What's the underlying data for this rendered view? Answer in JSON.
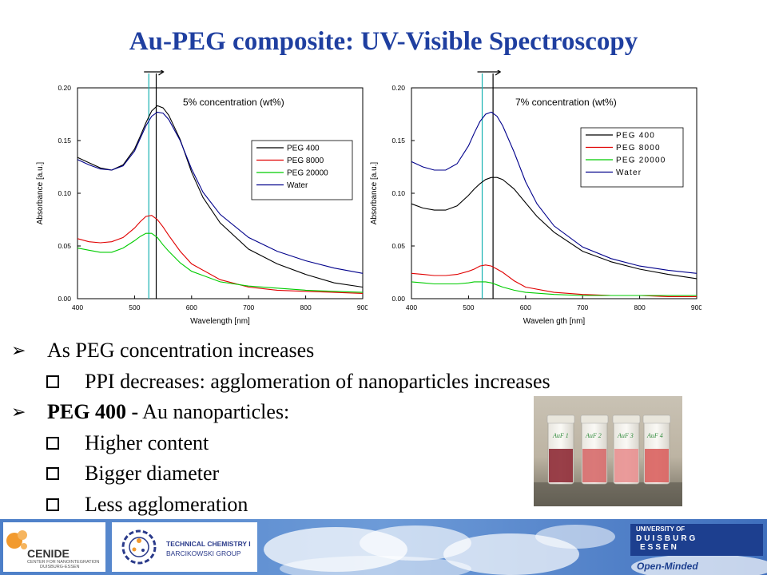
{
  "title": "Au-PEG composite: UV-Visible Spectroscopy",
  "chart_data": [
    {
      "type": "line",
      "title": "5% concentration (wt%)",
      "xlabel": "Wavelength [nm]",
      "ylabel": "Absorbance [a.u.]",
      "xlim": [
        400,
        900
      ],
      "ylim": [
        0,
        0.2
      ],
      "xticks": [
        "400",
        "500",
        "600",
        "700",
        "800",
        "900"
      ],
      "yticks": [
        "0.00",
        "0.05",
        "0.10",
        "0.15",
        "0.20"
      ],
      "legend": "top-right",
      "series": [
        {
          "name": "PEG 400",
          "color": "#000000",
          "x": [
            400,
            420,
            440,
            460,
            480,
            500,
            510,
            520,
            530,
            540,
            550,
            560,
            580,
            600,
            620,
            650,
            700,
            750,
            800,
            850,
            900
          ],
          "y": [
            0.134,
            0.129,
            0.124,
            0.122,
            0.127,
            0.142,
            0.154,
            0.167,
            0.178,
            0.183,
            0.181,
            0.174,
            0.151,
            0.12,
            0.096,
            0.072,
            0.047,
            0.033,
            0.023,
            0.015,
            0.011
          ]
        },
        {
          "name": "PEG 8000",
          "color": "#e00000",
          "x": [
            400,
            420,
            440,
            460,
            480,
            500,
            510,
            520,
            530,
            540,
            550,
            560,
            580,
            600,
            650,
            700,
            750,
            800,
            850,
            900
          ],
          "y": [
            0.057,
            0.054,
            0.053,
            0.054,
            0.058,
            0.067,
            0.073,
            0.078,
            0.079,
            0.075,
            0.068,
            0.06,
            0.045,
            0.033,
            0.018,
            0.011,
            0.008,
            0.007,
            0.006,
            0.005
          ]
        },
        {
          "name": "PEG 20000",
          "color": "#00cc00",
          "x": [
            400,
            420,
            440,
            460,
            480,
            500,
            510,
            520,
            530,
            540,
            550,
            560,
            580,
            600,
            650,
            700,
            750,
            800,
            850,
            900
          ],
          "y": [
            0.048,
            0.046,
            0.044,
            0.044,
            0.048,
            0.055,
            0.059,
            0.062,
            0.062,
            0.058,
            0.051,
            0.045,
            0.034,
            0.026,
            0.016,
            0.012,
            0.01,
            0.008,
            0.007,
            0.006
          ]
        },
        {
          "name": "Water",
          "color": "#00008b",
          "x": [
            400,
            420,
            440,
            460,
            480,
            500,
            510,
            520,
            530,
            540,
            550,
            560,
            580,
            600,
            620,
            650,
            700,
            750,
            800,
            850,
            900
          ],
          "y": [
            0.132,
            0.127,
            0.123,
            0.122,
            0.126,
            0.14,
            0.152,
            0.164,
            0.173,
            0.177,
            0.176,
            0.17,
            0.15,
            0.123,
            0.101,
            0.08,
            0.058,
            0.045,
            0.036,
            0.029,
            0.024
          ]
        }
      ]
    },
    {
      "type": "line",
      "title": "7% concentration (wt%)",
      "xlabel": "Wavelen gth [nm]",
      "ylabel": "Absorbance [a.u.]",
      "xlim": [
        400,
        900
      ],
      "ylim": [
        0,
        0.2
      ],
      "xticks": [
        "400",
        "500",
        "600",
        "700",
        "800",
        "900"
      ],
      "yticks": [
        "0.00",
        "0.05",
        "0.10",
        "0.15",
        "0.20"
      ],
      "legend": "top-right",
      "series": [
        {
          "name": "PEG 400",
          "color": "#000000",
          "x": [
            400,
            420,
            440,
            460,
            480,
            500,
            510,
            520,
            530,
            540,
            550,
            560,
            580,
            600,
            620,
            650,
            700,
            750,
            800,
            850,
            900
          ],
          "y": [
            0.09,
            0.086,
            0.084,
            0.084,
            0.088,
            0.098,
            0.104,
            0.109,
            0.113,
            0.115,
            0.115,
            0.113,
            0.104,
            0.091,
            0.078,
            0.063,
            0.045,
            0.035,
            0.028,
            0.023,
            0.019
          ]
        },
        {
          "name": "PEG 8000",
          "color": "#e00000",
          "x": [
            400,
            420,
            440,
            460,
            480,
            500,
            510,
            520,
            530,
            540,
            550,
            560,
            580,
            600,
            650,
            700,
            750,
            800,
            850,
            900
          ],
          "y": [
            0.024,
            0.023,
            0.022,
            0.022,
            0.023,
            0.026,
            0.028,
            0.031,
            0.032,
            0.031,
            0.028,
            0.025,
            0.017,
            0.011,
            0.006,
            0.004,
            0.003,
            0.003,
            0.002,
            0.002
          ]
        },
        {
          "name": "PEG 20000",
          "color": "#00cc00",
          "x": [
            400,
            420,
            440,
            460,
            480,
            500,
            510,
            520,
            530,
            540,
            550,
            560,
            580,
            600,
            650,
            700,
            750,
            800,
            850,
            900
          ],
          "y": [
            0.016,
            0.015,
            0.014,
            0.014,
            0.014,
            0.015,
            0.016,
            0.016,
            0.016,
            0.015,
            0.013,
            0.011,
            0.008,
            0.006,
            0.004,
            0.003,
            0.003,
            0.003,
            0.003,
            0.003
          ]
        },
        {
          "name": "Water",
          "color": "#00008b",
          "x": [
            400,
            420,
            440,
            460,
            480,
            500,
            510,
            520,
            530,
            540,
            550,
            560,
            580,
            600,
            620,
            650,
            700,
            750,
            800,
            850,
            900
          ],
          "y": [
            0.13,
            0.125,
            0.122,
            0.122,
            0.128,
            0.145,
            0.157,
            0.168,
            0.175,
            0.177,
            0.173,
            0.164,
            0.139,
            0.111,
            0.09,
            0.069,
            0.049,
            0.038,
            0.031,
            0.027,
            0.024
          ]
        }
      ]
    }
  ],
  "bullets": [
    {
      "level": 1,
      "marker": "➢",
      "bold": "",
      "text": "As PEG concentration increases"
    },
    {
      "level": 2,
      "marker": "❑",
      "bold": "",
      "text": "PPI decreases: agglomeration of nanoparticles increases"
    },
    {
      "level": 1,
      "marker": "➢",
      "bold": "PEG 400 -",
      "text": " Au nanoparticles:"
    },
    {
      "level": 2,
      "marker": "❑",
      "bold": "",
      "text": "Higher content"
    },
    {
      "level": 2,
      "marker": "❑",
      "bold": "",
      "text": "Bigger diameter"
    },
    {
      "level": 2,
      "marker": "❑",
      "bold": "",
      "text": "Less agglomeration"
    }
  ],
  "photo": {
    "vial_labels": [
      "AuF 1",
      "AuF 2",
      "AuF 3",
      "AuF 4"
    ]
  },
  "footer": {
    "cenide_name": "CENIDE",
    "cenide_sub_1": "CENTER FOR NANOINTEGRATION",
    "cenide_sub_2": "DUISBURG-ESSEN",
    "tc_line1": "TECHNICAL CHEMISTRY I",
    "tc_line2": "BARCIKOWSKI GROUP",
    "ude_univ": "UNIVERSITY OF",
    "ude_duis": "DUISBURG",
    "ude_essen": "ESSEN",
    "ude_slogan": "Open-Minded"
  }
}
